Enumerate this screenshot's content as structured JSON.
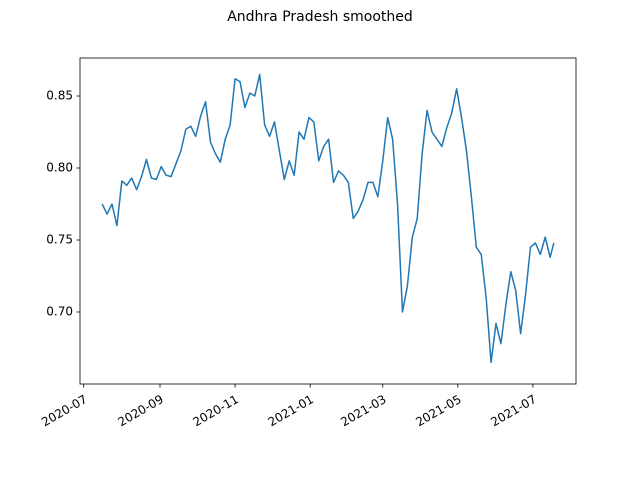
{
  "chart_data": {
    "type": "line",
    "title": "Andhra Pradesh smoothed",
    "x": [
      "2020-07-16",
      "2020-07-20",
      "2020-07-24",
      "2020-07-28",
      "2020-08-01",
      "2020-08-05",
      "2020-08-09",
      "2020-08-13",
      "2020-08-17",
      "2020-08-21",
      "2020-08-25",
      "2020-08-29",
      "2020-09-02",
      "2020-09-06",
      "2020-09-10",
      "2020-09-14",
      "2020-09-18",
      "2020-09-22",
      "2020-09-26",
      "2020-09-30",
      "2020-10-04",
      "2020-10-08",
      "2020-10-12",
      "2020-10-16",
      "2020-10-20",
      "2020-10-24",
      "2020-10-28",
      "2020-11-01",
      "2020-11-05",
      "2020-11-09",
      "2020-11-13",
      "2020-11-17",
      "2020-11-21",
      "2020-11-25",
      "2020-11-29",
      "2020-12-03",
      "2020-12-07",
      "2020-12-11",
      "2020-12-15",
      "2020-12-19",
      "2020-12-23",
      "2020-12-27",
      "2020-12-31",
      "2021-01-04",
      "2021-01-08",
      "2021-01-12",
      "2021-01-16",
      "2021-01-20",
      "2021-01-24",
      "2021-01-28",
      "2021-02-01",
      "2021-02-05",
      "2021-02-09",
      "2021-02-13",
      "2021-02-17",
      "2021-02-21",
      "2021-02-25",
      "2021-03-01",
      "2021-03-05",
      "2021-03-09",
      "2021-03-13",
      "2021-03-17",
      "2021-03-21",
      "2021-03-25",
      "2021-03-29",
      "2021-04-02",
      "2021-04-06",
      "2021-04-10",
      "2021-04-14",
      "2021-04-18",
      "2021-04-22",
      "2021-04-26",
      "2021-04-30",
      "2021-05-04",
      "2021-05-08",
      "2021-05-12",
      "2021-05-16",
      "2021-05-20",
      "2021-05-24",
      "2021-05-28",
      "2021-06-01",
      "2021-06-05",
      "2021-06-09",
      "2021-06-13",
      "2021-06-17",
      "2021-06-21",
      "2021-06-25",
      "2021-06-29",
      "2021-07-03",
      "2021-07-07",
      "2021-07-11",
      "2021-07-15",
      "2021-07-18"
    ],
    "series": [
      {
        "color": "#1f77b4",
        "values": [
          0.775,
          0.768,
          0.775,
          0.76,
          0.791,
          0.788,
          0.793,
          0.785,
          0.794,
          0.806,
          0.793,
          0.792,
          0.801,
          0.795,
          0.794,
          0.803,
          0.812,
          0.827,
          0.829,
          0.822,
          0.836,
          0.846,
          0.818,
          0.81,
          0.804,
          0.82,
          0.83,
          0.862,
          0.86,
          0.842,
          0.852,
          0.85,
          0.865,
          0.83,
          0.822,
          0.832,
          0.812,
          0.792,
          0.805,
          0.795,
          0.825,
          0.82,
          0.835,
          0.832,
          0.805,
          0.815,
          0.82,
          0.79,
          0.798,
          0.795,
          0.79,
          0.765,
          0.77,
          0.778,
          0.79,
          0.79,
          0.78,
          0.805,
          0.835,
          0.82,
          0.775,
          0.7,
          0.718,
          0.752,
          0.765,
          0.81,
          0.84,
          0.825,
          0.82,
          0.815,
          0.828,
          0.838,
          0.855,
          0.835,
          0.812,
          0.78,
          0.745,
          0.74,
          0.71,
          0.665,
          0.692,
          0.678,
          0.705,
          0.728,
          0.715,
          0.685,
          0.712,
          0.745,
          0.748,
          0.74,
          0.752,
          0.738,
          0.748
        ]
      }
    ],
    "xlim": [
      "2020-06-28",
      "2021-08-05"
    ],
    "xticks": [
      {
        "value": "2020-07-01",
        "label": "2020-07"
      },
      {
        "value": "2020-09-01",
        "label": "2020-09"
      },
      {
        "value": "2020-11-01",
        "label": "2020-11"
      },
      {
        "value": "2021-01-01",
        "label": "2021-01"
      },
      {
        "value": "2021-03-01",
        "label": "2021-03"
      },
      {
        "value": "2021-05-01",
        "label": "2021-05"
      },
      {
        "value": "2021-07-01",
        "label": "2021-07"
      }
    ],
    "ylim": [
      0.65,
      0.8764
    ],
    "yticks": [
      {
        "value": 0.7,
        "label": "0.70"
      },
      0.75,
      {
        "value": 0.8,
        "label": "0.80"
      },
      0.85
    ]
  }
}
